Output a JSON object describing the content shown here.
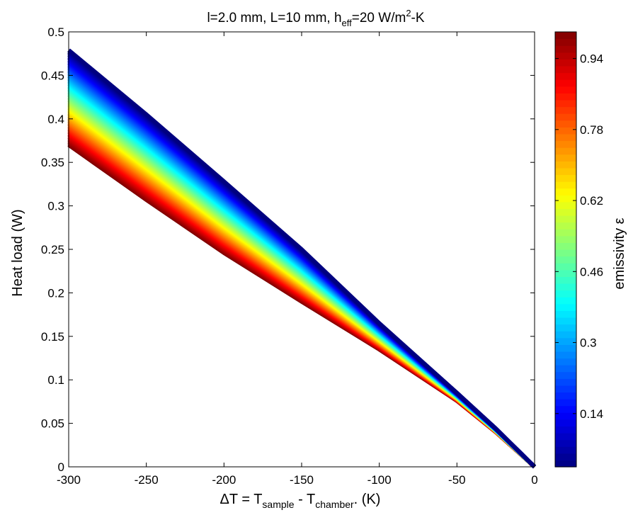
{
  "chart_data": {
    "type": "area",
    "title": {
      "main_a": "l=2.0 mm, L=10 mm, h",
      "sub_a": "eff",
      "main_b": "=20 W/m",
      "sup_b": "2",
      "main_c": "-K"
    },
    "xlabel": {
      "main_a": "ΔT = T",
      "sub_a": "sample",
      "main_b": " - T",
      "sub_b": "chamber",
      "main_c": ". (K)"
    },
    "ylabel": "Heat load (W)",
    "xlim": [
      -300,
      0
    ],
    "ylim": [
      0,
      0.5
    ],
    "x_ticks": [
      -300,
      -250,
      -200,
      -150,
      -100,
      -50,
      0
    ],
    "x_tick_labels": [
      "-300",
      "-250",
      "-200",
      "-150",
      "-100",
      "-50",
      "0"
    ],
    "y_ticks": [
      0,
      0.05,
      0.1,
      0.15,
      0.2,
      0.25,
      0.3,
      0.35,
      0.4,
      0.45,
      0.5
    ],
    "y_tick_labels": [
      "0",
      "0.05",
      "0.1",
      "0.15",
      "0.2",
      "0.25",
      "0.3",
      "0.35",
      "0.4",
      "0.45",
      "0.5"
    ],
    "grid": false,
    "band": {
      "color_variable": "emissivity",
      "epsilon_range": [
        0.02,
        1.0
      ],
      "line_count": 60,
      "x": [
        -300,
        -250,
        -200,
        -150,
        -100,
        -50,
        -25,
        0
      ],
      "y_at_min_epsilon": [
        0.479,
        0.405,
        0.328,
        0.25,
        0.165,
        0.085,
        0.044,
        0
      ],
      "y_at_max_epsilon": [
        0.37,
        0.307,
        0.246,
        0.19,
        0.135,
        0.076,
        0.04,
        0
      ]
    },
    "colorbar": {
      "label": "emissivity ε",
      "range": [
        0.02,
        1.0
      ],
      "ticks": [
        0.14,
        0.3,
        0.46,
        0.62,
        0.78,
        0.94
      ],
      "tick_labels": [
        "0.14",
        "0.3",
        "0.46",
        "0.62",
        "0.78",
        "0.94"
      ],
      "colormap": "jet"
    }
  }
}
